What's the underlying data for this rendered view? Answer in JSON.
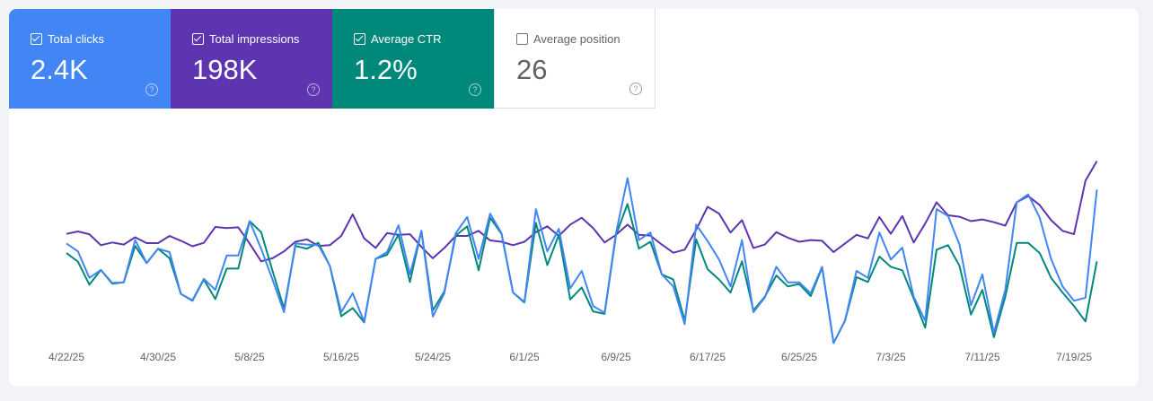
{
  "metrics": [
    {
      "label": "Total clicks",
      "value": "2.4K",
      "checked": true,
      "color": "#4285f4"
    },
    {
      "label": "Total impressions",
      "value": "198K",
      "checked": true,
      "color": "#5e35b1"
    },
    {
      "label": "Average CTR",
      "value": "1.2%",
      "checked": true,
      "color": "#00897b"
    },
    {
      "label": "Average position",
      "value": "26",
      "checked": false,
      "color": "#ffffff"
    }
  ],
  "help_icon": "?",
  "chart_data": {
    "type": "line",
    "x_tick_labels": [
      "4/22/25",
      "4/30/25",
      "5/8/25",
      "5/16/25",
      "5/24/25",
      "6/1/25",
      "6/9/25",
      "6/17/25",
      "6/25/25",
      "7/3/25",
      "7/11/25",
      "7/19/25"
    ],
    "x_tick_every_days": 8,
    "y_note": "relative (no y-axis shown)",
    "grid": false,
    "series": [
      {
        "name": "Total impressions",
        "color": "#5e35b1",
        "values": [
          363,
          370,
          362,
          330,
          338,
          332,
          353,
          336,
          336,
          357,
          343,
          327,
          337,
          383,
          380,
          382,
          335,
          283,
          292,
          312,
          340,
          347,
          328,
          330,
          357,
          420,
          350,
          322,
          365,
          360,
          362,
          325,
          292,
          322,
          357,
          357,
          372,
          344,
          340,
          330,
          340,
          368,
          385,
          357,
          390,
          410,
          380,
          338,
          360,
          390,
          360,
          358,
          332,
          308,
          317,
          375,
          442,
          422,
          367,
          403,
          322,
          332,
          368,
          352,
          340,
          345,
          343,
          310,
          335,
          360,
          350,
          412,
          363,
          415,
          338,
          393,
          455,
          417,
          413,
          400,
          405,
          397,
          387,
          455,
          473,
          447,
          403,
          372,
          362,
          518,
          575
        ]
      },
      {
        "name": "Average CTR",
        "color": "#00897b",
        "values": [
          307,
          282,
          215,
          258,
          218,
          222,
          328,
          278,
          320,
          292,
          188,
          168,
          230,
          173,
          262,
          262,
          400,
          368,
          255,
          145,
          328,
          320,
          337,
          270,
          123,
          147,
          105,
          290,
          302,
          360,
          223,
          372,
          140,
          195,
          358,
          385,
          257,
          410,
          363,
          192,
          163,
          395,
          272,
          360,
          172,
          207,
          137,
          130,
          360,
          450,
          320,
          340,
          245,
          230,
          110,
          347,
          260,
          230,
          192,
          283,
          140,
          180,
          242,
          210,
          217,
          182,
          265,
          45,
          110,
          237,
          223,
          297,
          267,
          257,
          175,
          90,
          317,
          330,
          270,
          128,
          200,
          62,
          180,
          337,
          337,
          307,
          235,
          192,
          153,
          108,
          283
        ]
      },
      {
        "name": "Total clicks",
        "color": "#4285f4",
        "values": [
          335,
          312,
          235,
          258,
          220,
          222,
          345,
          278,
          320,
          310,
          188,
          170,
          232,
          200,
          300,
          300,
          400,
          320,
          230,
          135,
          335,
          332,
          330,
          270,
          135,
          190,
          107,
          290,
          310,
          388,
          245,
          372,
          122,
          190,
          365,
          412,
          290,
          422,
          365,
          192,
          165,
          435,
          312,
          378,
          204,
          255,
          153,
          133,
          365,
          525,
          345,
          367,
          245,
          210,
          100,
          390,
          342,
          288,
          210,
          345,
          135,
          178,
          267,
          222,
          222,
          190,
          267,
          45,
          110,
          255,
          235,
          367,
          288,
          323,
          180,
          110,
          435,
          415,
          332,
          155,
          245,
          75,
          200,
          455,
          478,
          410,
          290,
          210,
          168,
          177,
          492
        ]
      }
    ]
  }
}
